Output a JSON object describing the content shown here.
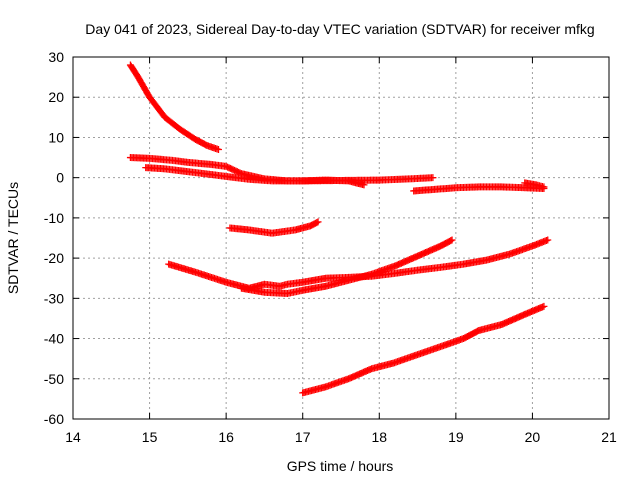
{
  "chart_data": {
    "type": "scatter",
    "title": "Day 041 of 2023, Sidereal Day-to-day VTEC variation (SDTVAR) for receiver mfkg",
    "xlabel": "GPS time / hours",
    "ylabel": "SDTVAR / TECUs",
    "xlim": [
      14,
      21
    ],
    "ylim": [
      -60,
      30
    ],
    "xticks": [
      14,
      15,
      16,
      17,
      18,
      19,
      20,
      21
    ],
    "yticks": [
      -60,
      -50,
      -40,
      -30,
      -20,
      -10,
      0,
      10,
      20,
      30
    ],
    "grid": true,
    "legend": "none",
    "marker": "plus",
    "color": "#ff0000",
    "series": [
      {
        "x": [
          14.75,
          14.85,
          15.0,
          15.2,
          15.4,
          15.6,
          15.75,
          15.9
        ],
        "y": [
          28,
          25,
          20,
          15,
          12,
          9.5,
          8,
          7
        ]
      },
      {
        "x": [
          14.75,
          15.0,
          15.3,
          15.5,
          15.8,
          16.0,
          16.2,
          16.5,
          16.8,
          17.0,
          17.3,
          17.6,
          17.8
        ],
        "y": [
          5,
          4.8,
          4.3,
          3.8,
          3.3,
          2.8,
          1.0,
          -0.3,
          -0.8,
          -0.8,
          -0.6,
          -0.8,
          -1.8
        ]
      },
      {
        "x": [
          14.95,
          15.2,
          15.5,
          15.8,
          16.0,
          16.3,
          16.6,
          17.0,
          17.5,
          18.0,
          18.4,
          18.7
        ],
        "y": [
          2.5,
          2.2,
          1.5,
          0.8,
          0.3,
          -0.4,
          -0.8,
          -0.8,
          -0.7,
          -0.6,
          -0.3,
          0
        ]
      },
      {
        "x": [
          18.45,
          18.8,
          19.0,
          19.3,
          19.6,
          19.9,
          20.15
        ],
        "y": [
          -3.3,
          -2.8,
          -2.5,
          -2.3,
          -2.3,
          -2.5,
          -2.7
        ]
      },
      {
        "x": [
          19.9,
          20.05,
          20.15
        ],
        "y": [
          -1.3,
          -1.8,
          -2.3
        ]
      },
      {
        "x": [
          16.05,
          16.3,
          16.6,
          16.9,
          17.1,
          17.2
        ],
        "y": [
          -12.5,
          -13.0,
          -13.8,
          -13.0,
          -12.0,
          -11.0
        ]
      },
      {
        "x": [
          15.25,
          15.6,
          16.0,
          16.3,
          16.5,
          16.7,
          16.8,
          17.0,
          17.3,
          17.6,
          17.9,
          18.2,
          18.5,
          18.8,
          19.1,
          19.4,
          19.7,
          20.0,
          20.2
        ],
        "y": [
          -21.5,
          -23.5,
          -26.0,
          -27.5,
          -26.5,
          -27.0,
          -26.5,
          -26.0,
          -25.0,
          -24.8,
          -24.5,
          -23.8,
          -23.0,
          -22.3,
          -21.5,
          -20.5,
          -19.0,
          -17.0,
          -15.5
        ]
      },
      {
        "x": [
          16.2,
          16.5,
          16.8,
          17.0,
          17.3,
          17.6,
          17.9,
          18.2,
          18.5,
          18.8,
          18.95
        ],
        "y": [
          -27.5,
          -28.5,
          -28.8,
          -28.0,
          -27.0,
          -25.5,
          -24.0,
          -22.0,
          -19.5,
          -17.0,
          -15.5
        ]
      },
      {
        "x": [
          17.0,
          17.3,
          17.6,
          17.9,
          18.2,
          18.5,
          18.8,
          19.1,
          19.3,
          19.6,
          19.9,
          20.15
        ],
        "y": [
          -53.5,
          -52.0,
          -50.0,
          -47.5,
          -46.0,
          -44.0,
          -42.0,
          -40.0,
          -38.0,
          -36.5,
          -34.0,
          -32.0
        ]
      }
    ]
  }
}
